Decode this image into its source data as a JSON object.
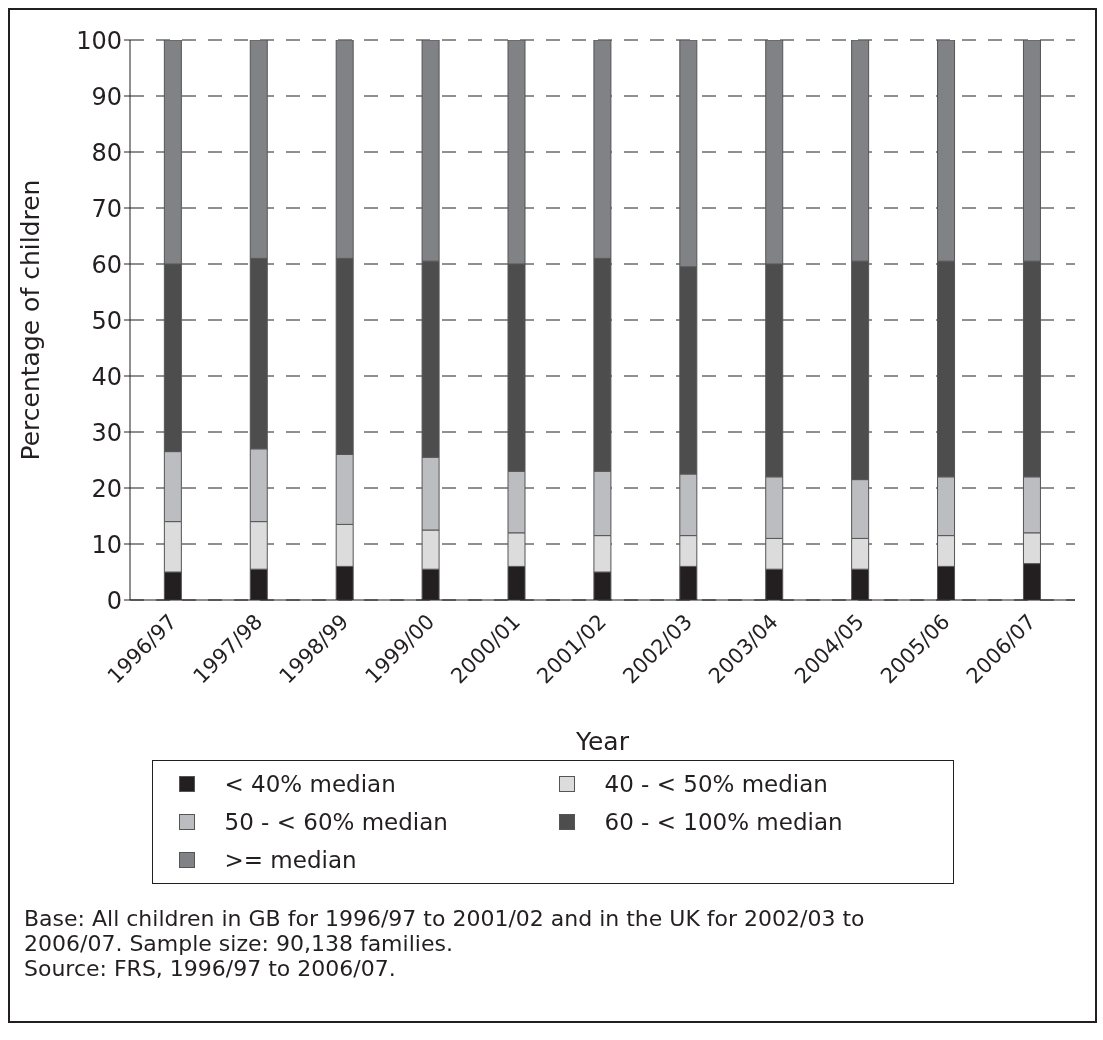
{
  "chart_data": {
    "type": "bar",
    "stacked": true,
    "xlabel": "Year",
    "ylabel": "Percentage of children",
    "categories": [
      "1996/97",
      "1997/98",
      "1998/99",
      "1999/00",
      "2000/01",
      "2001/02",
      "2002/03",
      "2003/04",
      "2004/05",
      "2005/06",
      "2006/07"
    ],
    "series": [
      {
        "name": "< 40% median",
        "color": "#231f20",
        "values": [
          5,
          5.5,
          6,
          5.5,
          6,
          5,
          6,
          5.5,
          5.5,
          6,
          6.5
        ]
      },
      {
        "name": "40 - < 50% median",
        "color": "#dcdcdc",
        "values": [
          9,
          8.5,
          7.5,
          7,
          6,
          6.5,
          5.5,
          5.5,
          5.5,
          5.5,
          5.5
        ]
      },
      {
        "name": "50 - < 60% median",
        "color": "#bcbdc0",
        "values": [
          12.5,
          13,
          12.5,
          13,
          11,
          11.5,
          11,
          11,
          10.5,
          10.5,
          10
        ]
      },
      {
        "name": "60 - < 100% median",
        "color": "#4d4d4d",
        "values": [
          33.5,
          34,
          35,
          35,
          37,
          38,
          37,
          38,
          39,
          38.5,
          38.5
        ]
      },
      {
        "name": ">= median",
        "color": "#808285",
        "values": [
          40,
          39,
          39,
          39.5,
          40,
          39,
          40.5,
          40,
          39.5,
          39.5,
          39.5
        ]
      }
    ],
    "ylim": [
      0,
      100
    ],
    "yticks": [
      0,
      10,
      20,
      30,
      40,
      50,
      60,
      70,
      80,
      90,
      100
    ],
    "grid": "y",
    "legend": "bottom",
    "annotations": [
      "Base: All children in GB for 1996/97 to 2001/02 and in the UK for 2002/03 to 2006/07. Sample size: 90,138 families.",
      "Source: FRS, 1996/97 to 2006/07."
    ]
  }
}
